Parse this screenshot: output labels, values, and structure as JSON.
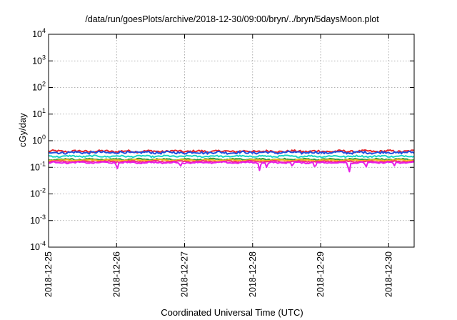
{
  "chart_data": {
    "type": "line",
    "title": "/data/run/goesPlots/archive/2018-12-30/09:00/bryn/../bryn/5daysMoon.plot",
    "xlabel": "Coordinated Universal Time (UTC)",
    "ylabel": "cGy/day",
    "y_scale": "log",
    "ylim": [
      0.0001,
      10000
    ],
    "y_ticks": [
      {
        "value": 0.0001,
        "mantissa": "10",
        "exp": "-4"
      },
      {
        "value": 0.001,
        "mantissa": "10",
        "exp": "-3"
      },
      {
        "value": 0.01,
        "mantissa": "10",
        "exp": "-2"
      },
      {
        "value": 0.1,
        "mantissa": "10",
        "exp": "-1"
      },
      {
        "value": 1,
        "mantissa": "10",
        "exp": "0"
      },
      {
        "value": 10,
        "mantissa": "10",
        "exp": "1"
      },
      {
        "value": 100,
        "mantissa": "10",
        "exp": "2"
      },
      {
        "value": 1000,
        "mantissa": "10",
        "exp": "3"
      },
      {
        "value": 10000,
        "mantissa": "10",
        "exp": "4"
      }
    ],
    "x_ticks": [
      "2018-12-25",
      "2018-12-26",
      "2018-12-27",
      "2018-12-28",
      "2018-12-29",
      "2018-12-30"
    ],
    "xlim": [
      "2018-12-25T00:00",
      "2018-12-30T09:00"
    ],
    "grid": true,
    "series": [
      {
        "color": "#e8232a",
        "level": 0.4,
        "noise": 0.09,
        "dips": []
      },
      {
        "color": "#1f4fe0",
        "level": 0.36,
        "noise": 0.1,
        "dips": []
      },
      {
        "color": "#19d3c5",
        "level": 0.26,
        "noise": 0.06,
        "dips": []
      },
      {
        "color": "#2e9e3e",
        "level": 0.2,
        "noise": 0.05,
        "dips": []
      },
      {
        "color": "#f2b51b",
        "level": 0.185,
        "noise": 0.04,
        "dips": []
      },
      {
        "color": "#f2297a",
        "level": 0.165,
        "noise": 0.04,
        "dips": []
      },
      {
        "color": "#e81ee8",
        "level": 0.15,
        "noise": 0.05,
        "dips": [
          {
            "t": "2018-12-26T00:10",
            "value": 0.07
          },
          {
            "t": "2018-12-26T22:30",
            "value": 0.1
          },
          {
            "t": "2018-12-28T02:30",
            "value": 0.065
          },
          {
            "t": "2018-12-28T05:00",
            "value": 0.09
          },
          {
            "t": "2018-12-28T14:00",
            "value": 0.1
          },
          {
            "t": "2018-12-28T22:00",
            "value": 0.08
          },
          {
            "t": "2018-12-29T10:00",
            "value": 0.03
          },
          {
            "t": "2018-12-29T16:00",
            "value": 0.09
          },
          {
            "t": "2018-12-30T02:00",
            "value": 0.11
          }
        ]
      }
    ]
  }
}
